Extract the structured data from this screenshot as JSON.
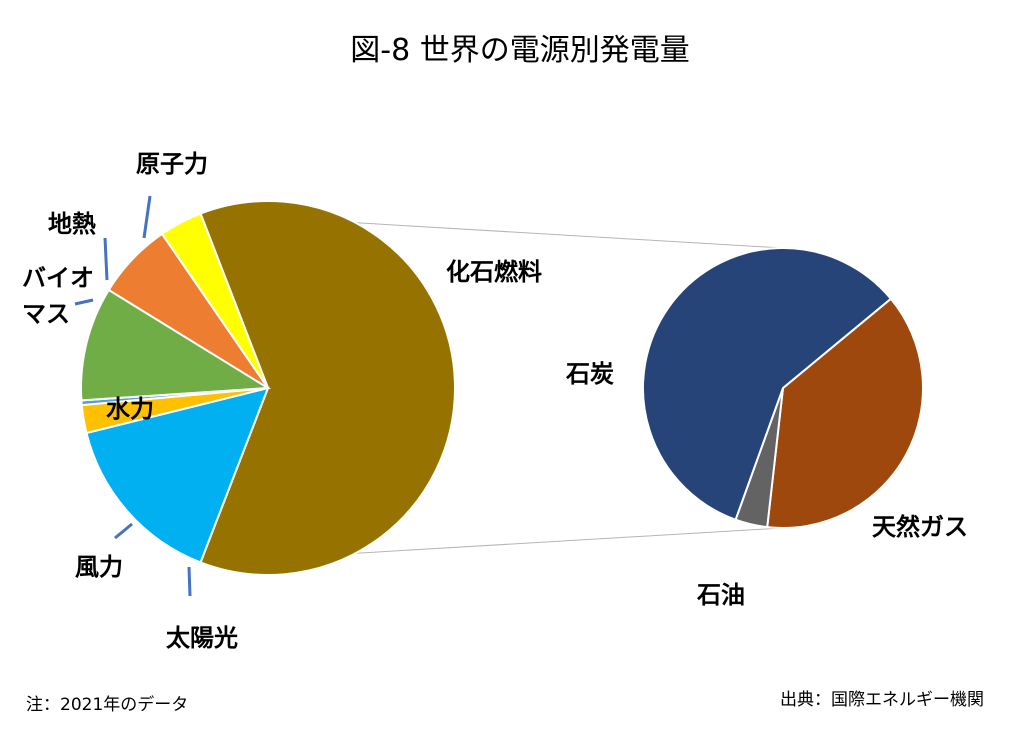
{
  "title": "図-8 世界の電源別発電量",
  "note": "注：2021年のデータ",
  "source": "出典：国際エネルギー機関",
  "chart_data": {
    "type": "pie",
    "subtype": "pie-of-pie",
    "title": "図-8 世界の電源別発電量",
    "primary": {
      "slices": [
        {
          "label": "化石燃料",
          "value": 61.5,
          "color": "#967300"
        },
        {
          "label": "水力",
          "value": 15.2,
          "color": "#00B0F0"
        },
        {
          "label": "バイオマス",
          "value": 2.4,
          "color": "#FFC000"
        },
        {
          "label": "地熱",
          "value": 0.4,
          "color": "#5B9BD5"
        },
        {
          "label": "原子力",
          "value": 9.8,
          "color": "#70AD47"
        },
        {
          "label": "風力",
          "value": 6.6,
          "color": "#ED7D31"
        },
        {
          "label": "太陽光",
          "value": 3.7,
          "color": "#FFFF00"
        }
      ]
    },
    "secondary": {
      "parent": "化石燃料",
      "slices": [
        {
          "label": "石炭",
          "value": 58.5,
          "color": "#264478"
        },
        {
          "label": "天然ガス",
          "value": 37.8,
          "color": "#9E480E"
        },
        {
          "label": "石油",
          "value": 3.7,
          "color": "#636363"
        }
      ]
    },
    "legend": "none"
  }
}
